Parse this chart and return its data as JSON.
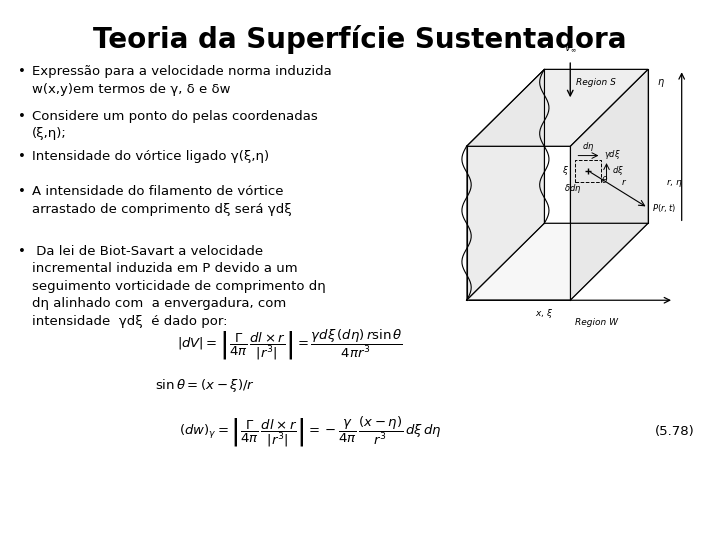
{
  "title": "Teoria da Superfície Sustentadora",
  "title_fontsize": 20,
  "title_fontweight": "bold",
  "background_color": "#ffffff",
  "text_color": "#000000",
  "bullet_points": [
    "Expressão para a velocidade norma induzida\nw(x,y)em termos de γ, δ e δᴡ",
    "Considere um ponto do pelas coordenadas\n(ξ,η);",
    "Intensidade do vórtice ligado γ(ξ,η)",
    "A intensidade do filamento de vórtice\narrastado de comprimento dξ será γdξ",
    " Da lei de Biot-Savart a velocidade\nincremental induzida em P devido a um\nseguimento vorticidade de comprimento dη\ndη alinhado com  a envergadura, com\nintensidade  γdξ  é dado por:"
  ],
  "eq_number": "(5.78)",
  "bullet_fontsize": 9.5,
  "eq_fontsize": 9.5
}
